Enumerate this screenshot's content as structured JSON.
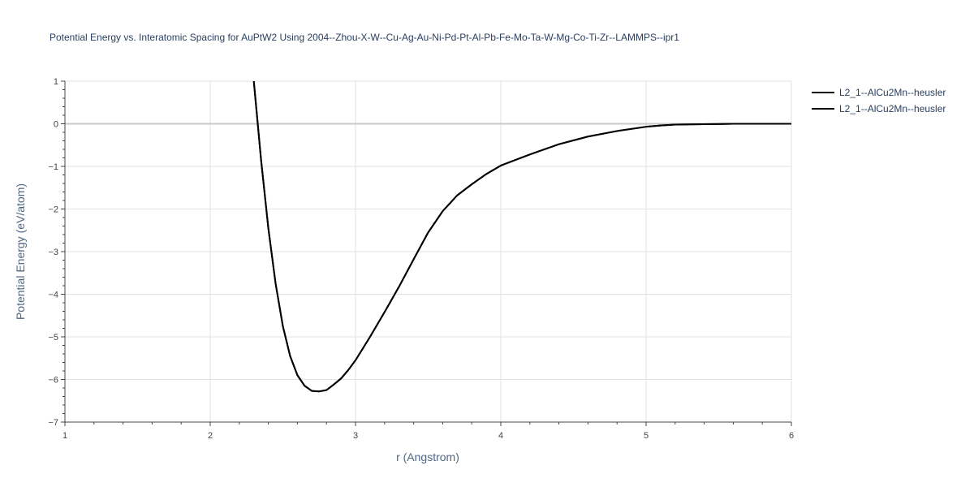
{
  "chart_data": {
    "type": "line",
    "title": "Potential Energy vs. Interatomic Spacing for AuPtW2 Using 2004--Zhou-X-W--Cu-Ag-Au-Ni-Pd-Pt-Al-Pb-Fe-Mo-Ta-W-Mg-Co-Ti-Zr--LAMMPS--ipr1",
    "xlabel": "r (Angstrom)",
    "ylabel": "Potential Energy (eV/atom)",
    "xlim": [
      1,
      6
    ],
    "ylim": [
      -7,
      1
    ],
    "x_ticks": [
      "1",
      "2",
      "3",
      "4",
      "5",
      "6"
    ],
    "y_ticks": [
      "1",
      "0",
      "−1",
      "−2",
      "−3",
      "−4",
      "−5",
      "−6",
      "−7"
    ],
    "grid": true,
    "legend_position": "top-right",
    "series": [
      {
        "name": "L2_1--AlCu2Mn--heusler",
        "color": "#000000",
        "x": [
          2.3,
          2.35,
          2.4,
          2.45,
          2.5,
          2.55,
          2.6,
          2.65,
          2.7,
          2.75,
          2.8,
          2.85,
          2.9,
          2.95,
          3.0,
          3.1,
          3.2,
          3.3,
          3.4,
          3.5,
          3.6,
          3.7,
          3.8,
          3.9,
          4.0,
          4.2,
          4.4,
          4.6,
          4.8,
          5.0,
          5.1,
          5.2,
          5.4,
          5.6,
          5.8,
          6.0
        ],
        "y": [
          1.0,
          -0.85,
          -2.45,
          -3.75,
          -4.75,
          -5.45,
          -5.9,
          -6.15,
          -6.27,
          -6.28,
          -6.25,
          -6.12,
          -5.98,
          -5.78,
          -5.55,
          -5.0,
          -4.42,
          -3.82,
          -3.18,
          -2.55,
          -2.05,
          -1.68,
          -1.42,
          -1.18,
          -0.98,
          -0.72,
          -0.48,
          -0.3,
          -0.17,
          -0.07,
          -0.04,
          -0.02,
          -0.01,
          0.0,
          0.0,
          0.0
        ]
      },
      {
        "name": "L2_1--AlCu2Mn--heusler",
        "color": "#000000",
        "x": [
          2.3,
          2.35,
          2.4,
          2.45,
          2.5,
          2.55,
          2.6,
          2.65,
          2.7,
          2.75,
          2.8,
          2.85,
          2.9,
          2.95,
          3.0,
          3.1,
          3.2,
          3.3,
          3.4,
          3.5,
          3.6,
          3.7,
          3.8,
          3.9,
          4.0,
          4.2,
          4.4,
          4.6,
          4.8,
          5.0,
          5.1,
          5.2,
          5.4,
          5.6,
          5.8,
          6.0
        ],
        "y": [
          1.0,
          -0.85,
          -2.45,
          -3.75,
          -4.75,
          -5.45,
          -5.9,
          -6.15,
          -6.27,
          -6.28,
          -6.25,
          -6.12,
          -5.98,
          -5.78,
          -5.55,
          -5.0,
          -4.42,
          -3.82,
          -3.18,
          -2.55,
          -2.05,
          -1.68,
          -1.42,
          -1.18,
          -0.98,
          -0.72,
          -0.48,
          -0.3,
          -0.17,
          -0.07,
          -0.04,
          -0.02,
          -0.01,
          0.0,
          0.0,
          0.0
        ]
      }
    ]
  }
}
